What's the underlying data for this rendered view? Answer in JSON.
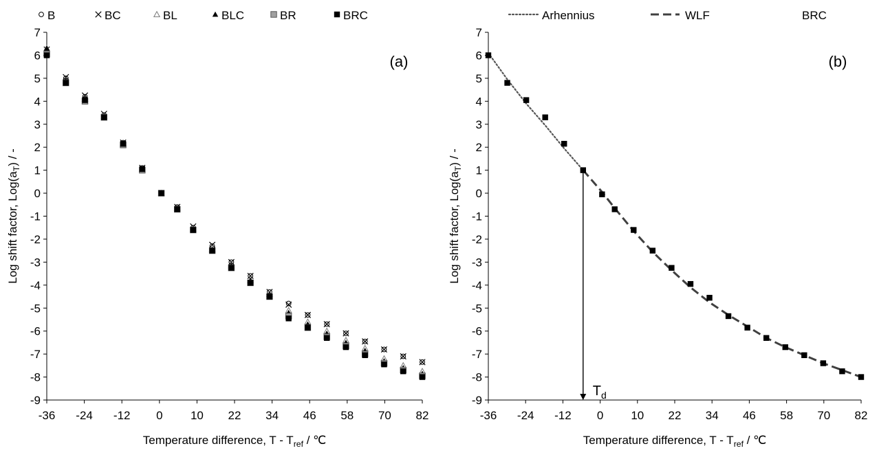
{
  "chart_data": [
    {
      "panel": "(a)",
      "type": "scatter",
      "xlabel": "Temperature difference, T - T",
      "xlabel_sub": "ref",
      "xlabel_tail": " / ℃",
      "ylabel": "Log shift factor, Log(a",
      "ylabel_sub": "T",
      "ylabel_tail": ") / -",
      "xlim": [
        -36,
        82
      ],
      "ylim": [
        -9,
        7
      ],
      "x_ticks": [
        "-36",
        "-24",
        "-12",
        "0",
        "10",
        "22",
        "34",
        "46",
        "58",
        "70",
        "82"
      ],
      "y_ticks": [
        "7",
        "6",
        "5",
        "4",
        "3",
        "2",
        "1",
        "0",
        "-1",
        "-2",
        "-3",
        "-4",
        "-5",
        "-6",
        "-7",
        "-8",
        "-9"
      ],
      "grid": false,
      "legend_position": "top",
      "x": [
        -36,
        -30,
        -24,
        -18,
        -12,
        -6,
        0,
        5,
        10,
        16,
        22,
        28,
        34,
        40,
        46,
        52,
        58,
        64,
        70,
        76,
        82
      ],
      "series": [
        {
          "name": "B",
          "marker": "circle-open",
          "values": [
            6.2,
            5.0,
            4.2,
            3.4,
            2.2,
            1.1,
            0.0,
            -0.6,
            -1.5,
            -2.3,
            -3.0,
            -3.6,
            -4.3,
            -4.8,
            -5.3,
            -5.7,
            -6.1,
            -6.45,
            -6.8,
            -7.1,
            -7.35
          ]
        },
        {
          "name": "BC",
          "marker": "cross",
          "values": [
            6.25,
            5.05,
            4.25,
            3.45,
            2.2,
            1.1,
            0.0,
            -0.6,
            -1.45,
            -2.25,
            -3.0,
            -3.6,
            -4.3,
            -4.85,
            -5.3,
            -5.7,
            -6.1,
            -6.45,
            -6.8,
            -7.1,
            -7.35
          ]
        },
        {
          "name": "BL",
          "marker": "triangle-open",
          "values": [
            6.3,
            4.9,
            4.1,
            3.35,
            2.15,
            1.05,
            0.0,
            -0.65,
            -1.55,
            -2.45,
            -3.15,
            -3.8,
            -4.4,
            -5.1,
            -5.6,
            -6.0,
            -6.4,
            -6.75,
            -7.2,
            -7.5,
            -7.75
          ]
        },
        {
          "name": "BLC",
          "marker": "triangle",
          "values": [
            6.3,
            4.9,
            4.1,
            3.35,
            2.15,
            1.05,
            0.0,
            -0.65,
            -1.55,
            -2.45,
            -3.15,
            -3.8,
            -4.4,
            -5.2,
            -5.7,
            -6.1,
            -6.5,
            -6.85,
            -7.3,
            -7.6,
            -7.85
          ]
        },
        {
          "name": "BR",
          "marker": "square-hatched",
          "values": [
            6.05,
            4.8,
            4.0,
            3.3,
            2.1,
            1.0,
            0.0,
            -0.7,
            -1.6,
            -2.5,
            -3.25,
            -3.9,
            -4.5,
            -5.35,
            -5.85,
            -6.25,
            -6.65,
            -7.0,
            -7.4,
            -7.7,
            -7.95
          ]
        },
        {
          "name": "BRC",
          "marker": "square",
          "values": [
            6.0,
            4.8,
            4.05,
            3.3,
            2.15,
            1.05,
            0.0,
            -0.7,
            -1.6,
            -2.5,
            -3.25,
            -3.9,
            -4.5,
            -5.45,
            -5.85,
            -6.3,
            -6.7,
            -7.05,
            -7.45,
            -7.75,
            -8.0
          ]
        }
      ]
    },
    {
      "panel": "(b)",
      "type": "scatter",
      "xlabel": "Temperature difference, T - T",
      "xlabel_sub": "ref",
      "xlabel_tail": "  / ℃",
      "ylabel": "Log shift factor, Log(a",
      "ylabel_sub": "T",
      "ylabel_tail": ") / -",
      "xlim": [
        -36,
        82
      ],
      "ylim": [
        -9,
        7
      ],
      "x_ticks": [
        "-36",
        "-24",
        "-12",
        "0",
        "10",
        "22",
        "34",
        "46",
        "58",
        "70",
        "82"
      ],
      "y_ticks": [
        "7",
        "6",
        "5",
        "4",
        "3",
        "2",
        "1",
        "0",
        "-1",
        "-2",
        "-3",
        "-4",
        "-5",
        "-6",
        "-7",
        "-8",
        "-9"
      ],
      "grid": false,
      "legend_position": "top",
      "annotation": {
        "text": "T",
        "sub": "d",
        "x": -6,
        "y_from": 1.0,
        "y_to": -9
      },
      "series": [
        {
          "name": "Arhennius",
          "kind": "line",
          "style": "dotted",
          "color": "#555555",
          "x": [
            -36,
            -30,
            -24,
            -18,
            -12,
            -6
          ],
          "values": [
            6.1,
            4.95,
            3.9,
            2.95,
            1.95,
            1.0
          ]
        },
        {
          "name": "WLF",
          "kind": "line",
          "style": "dashed",
          "color": "#404040",
          "x": [
            -6,
            0,
            4,
            10,
            16,
            22,
            28,
            34,
            40,
            46,
            52,
            58,
            64,
            70,
            76,
            82
          ],
          "values": [
            1.0,
            0.05,
            -0.65,
            -1.65,
            -2.55,
            -3.35,
            -4.1,
            -4.75,
            -5.3,
            -5.8,
            -6.3,
            -6.7,
            -7.05,
            -7.4,
            -7.7,
            -8.0
          ]
        },
        {
          "name": "BRC",
          "kind": "points",
          "marker": "square",
          "color": "#000000",
          "x": [
            -36,
            -30,
            -24,
            -18,
            -12,
            -6,
            0,
            4,
            10,
            16,
            22,
            28,
            34,
            40,
            46,
            52,
            58,
            64,
            70,
            76,
            82
          ],
          "values": [
            6.0,
            4.8,
            4.05,
            3.3,
            2.15,
            1.0,
            -0.05,
            -0.7,
            -1.6,
            -2.5,
            -3.25,
            -3.95,
            -4.55,
            -5.35,
            -5.85,
            -6.3,
            -6.7,
            -7.05,
            -7.4,
            -7.75,
            -8.0
          ]
        }
      ]
    }
  ]
}
